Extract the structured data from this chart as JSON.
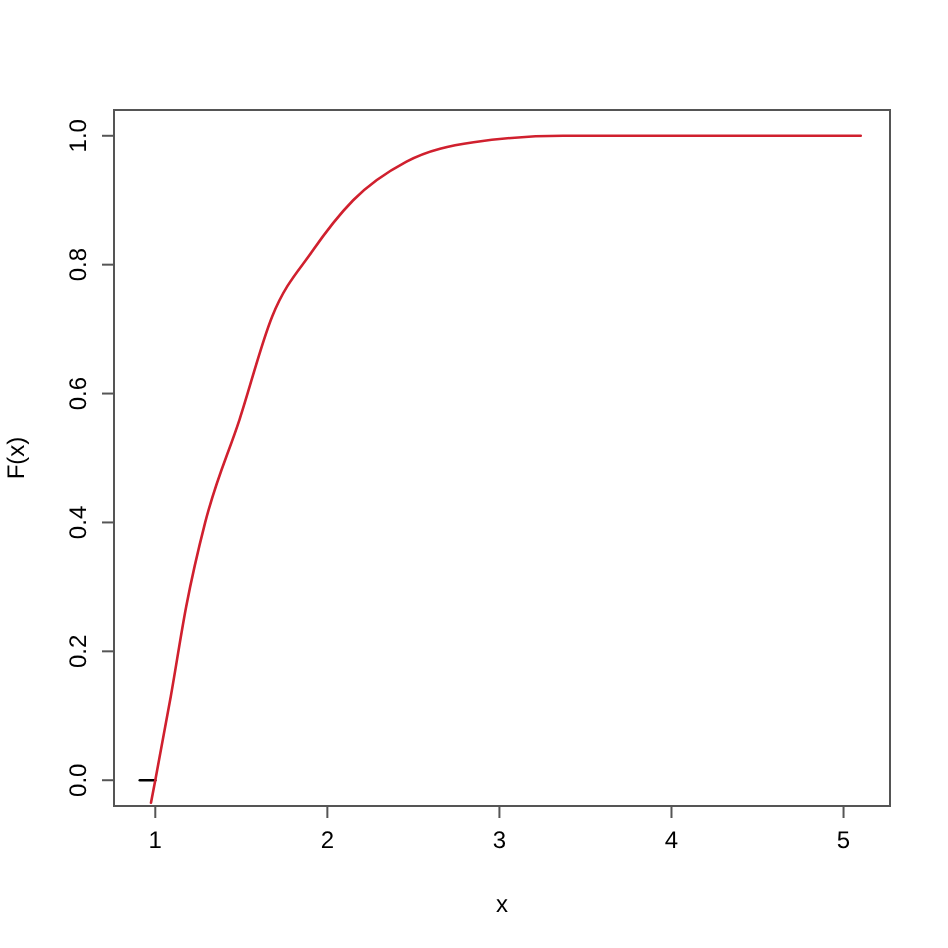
{
  "chart_data": {
    "type": "line",
    "xlabel": "x",
    "ylabel": "F(x)",
    "xlim": [
      0.76,
      5.27
    ],
    "ylim": [
      -0.04,
      1.04
    ],
    "xticks": [
      1,
      2,
      3,
      4,
      5
    ],
    "yticks": [
      {
        "value": 0,
        "label": "0.0"
      },
      0.2,
      0.4,
      0.6,
      0.8,
      {
        "value": 1,
        "label": "1.0"
      }
    ],
    "series": [
      {
        "color": "#000000",
        "x": [
          0.91,
          1.0
        ],
        "values": [
          0,
          0
        ]
      },
      {
        "color": "#d0202e",
        "x": [
          0.975,
          1.0,
          1.09,
          1.18,
          1.29,
          1.49,
          1.68,
          1.91,
          2.15,
          2.46,
          2.85,
          3.37,
          4.0,
          5.1
        ],
        "values": [
          -0.035,
          0,
          0.13,
          0.27,
          0.4,
          0.56,
          0.72,
          0.82,
          0.9,
          0.96,
          0.99,
          1.0,
          1.0,
          1.0
        ]
      }
    ]
  }
}
